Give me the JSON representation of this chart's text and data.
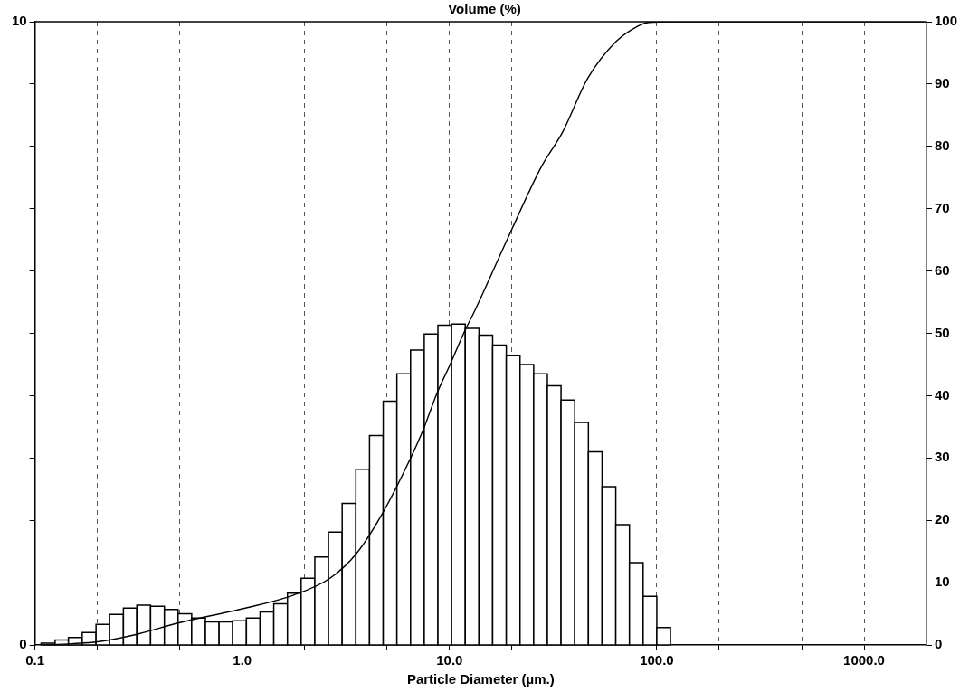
{
  "chart_data": {
    "type": "histogram",
    "title": "Volume (%)",
    "xlabel": "Particle Diameter (µm.)",
    "log": "x",
    "grid": "x",
    "legend": false,
    "xlim": [
      0.1,
      2000
    ],
    "xticks": [
      {
        "value": 0.1,
        "label": "0.1"
      },
      {
        "value": 0.2,
        "label": null
      },
      {
        "value": 0.5,
        "label": null
      },
      {
        "value": 1,
        "label": "1.0"
      },
      {
        "value": 2,
        "label": null
      },
      {
        "value": 5,
        "label": null
      },
      {
        "value": 10,
        "label": "10.0"
      },
      {
        "value": 20,
        "label": null
      },
      {
        "value": 50,
        "label": null
      },
      {
        "value": 100,
        "label": "100.0"
      },
      {
        "value": 200,
        "label": null
      },
      {
        "value": 500,
        "label": null
      },
      {
        "value": 1000,
        "label": "1000.0"
      }
    ],
    "ylim": [
      0,
      10
    ],
    "yticks": [
      0,
      {
        "value": 1,
        "label": null
      },
      {
        "value": 2,
        "label": null
      },
      {
        "value": 3,
        "label": null
      },
      {
        "value": 4,
        "label": null
      },
      {
        "value": 5,
        "label": null
      },
      {
        "value": 6,
        "label": null
      },
      {
        "value": 7,
        "label": null
      },
      {
        "value": 8,
        "label": null
      },
      {
        "value": 9,
        "label": null
      },
      10
    ],
    "y2lim": [
      0,
      100
    ],
    "y2ticks": [
      0,
      10,
      20,
      30,
      40,
      50,
      60,
      70,
      80,
      90,
      100
    ],
    "bins": [
      0.107,
      0.125,
      0.145,
      0.169,
      0.197,
      0.229,
      0.267,
      0.31,
      0.361,
      0.421,
      0.49,
      0.57,
      0.664,
      0.773,
      0.899,
      1.047,
      1.219,
      1.419,
      1.652,
      1.923,
      2.239,
      2.606,
      3.034,
      3.532,
      4.111,
      4.786,
      5.572,
      6.486,
      7.551,
      8.79,
      10.23,
      11.91,
      13.87,
      16.14,
      18.79,
      21.88,
      25.47,
      29.65,
      34.51,
      40.18,
      46.77,
      54.45,
      63.39,
      73.79,
      85.9,
      100,
      116.4
    ],
    "series": [
      {
        "color": "#ffffff",
        "values": [
          0.03,
          0.08,
          0.12,
          0.2,
          0.33,
          0.49,
          0.59,
          0.64,
          0.62,
          0.57,
          0.5,
          0.43,
          0.37,
          0.37,
          0.39,
          0.43,
          0.53,
          0.66,
          0.83,
          1.07,
          1.41,
          1.81,
          2.27,
          2.82,
          3.36,
          3.91,
          4.35,
          4.73,
          4.99,
          5.13,
          5.15,
          5.08,
          4.97,
          4.81,
          4.64,
          4.5,
          4.35,
          4.16,
          3.93,
          3.57,
          3.1,
          2.54,
          1.93,
          1.32,
          0.78,
          0.28
        ]
      },
      {
        "type": "line",
        "axis": "y2",
        "color": "#000000",
        "marker": "none",
        "x": [
          0.107,
          0.15,
          0.2,
          0.3,
          0.5,
          1,
          1.77,
          2.65,
          3.56,
          4.8,
          6.45,
          7.5,
          8.7,
          10.1,
          11.7,
          13.4,
          19,
          27.8,
          35,
          46.4,
          63.5,
          80,
          91.6,
          116,
          2000
        ],
        "values": [
          0,
          0.2,
          0.5,
          1.6,
          3.6,
          5.8,
          8,
          10.7,
          14.7,
          21.4,
          29.8,
          34.7,
          40.4,
          45.1,
          50,
          54,
          65.1,
          76.8,
          82.2,
          90.9,
          96.8,
          99.2,
          99.9,
          100,
          100
        ]
      }
    ]
  }
}
